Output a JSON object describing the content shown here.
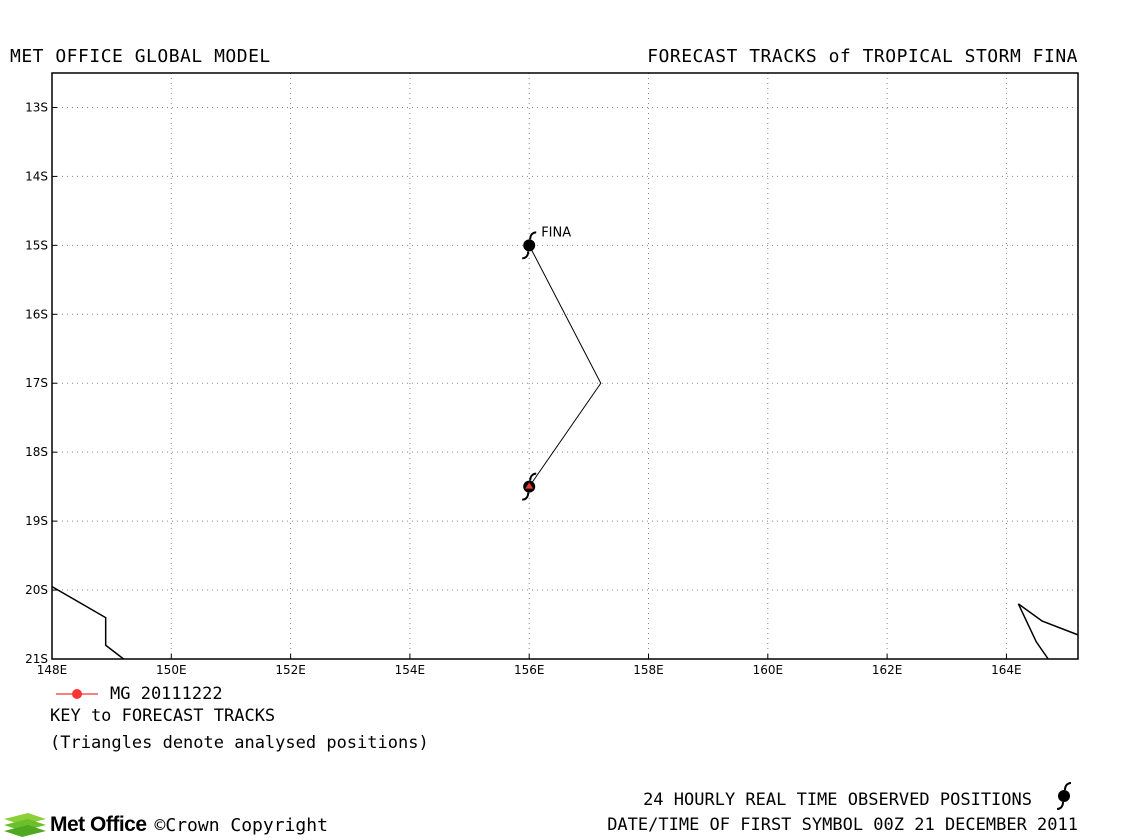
{
  "header": {
    "left": "MET OFFICE GLOBAL MODEL",
    "right": "FORECAST TRACKS of TROPICAL STORM FINA"
  },
  "map": {
    "lon_range": [
      148,
      165.2
    ],
    "lat_range": [
      -21,
      -12.5
    ],
    "lon_ticks": [
      148,
      150,
      152,
      154,
      156,
      158,
      160,
      162,
      164
    ],
    "lon_tick_labels": [
      "148E",
      "150E",
      "152E",
      "154E",
      "156E",
      "158E",
      "160E",
      "162E",
      "164E"
    ],
    "lat_ticks": [
      -13,
      -14,
      -15,
      -16,
      -17,
      -18,
      -19,
      -20,
      -21
    ],
    "lat_tick_labels": [
      "13S",
      "14S",
      "15S",
      "16S",
      "17S",
      "18S",
      "19S",
      "20S",
      "21S"
    ],
    "grid": "dotted",
    "storm_name": "FINA",
    "observed_positions": [
      {
        "lon": 156.0,
        "lat": -18.5
      },
      {
        "lon": 156.0,
        "lat": -15.0
      }
    ],
    "forecast_track": [
      {
        "lon": 156.0,
        "lat": -18.5
      },
      {
        "lon": 157.2,
        "lat": -17.0
      },
      {
        "lon": 156.0,
        "lat": -15.0
      }
    ],
    "coastlines": [
      [
        [
          148.0,
          -19.95
        ],
        [
          148.4,
          -20.15
        ],
        [
          148.9,
          -20.4
        ],
        [
          148.9,
          -20.8
        ],
        [
          149.2,
          -21.0
        ]
      ],
      [
        [
          164.2,
          -20.2
        ],
        [
          164.6,
          -20.45
        ],
        [
          165.2,
          -20.65
        ]
      ],
      [
        [
          164.2,
          -20.2
        ],
        [
          164.5,
          -20.75
        ],
        [
          164.7,
          -21.0
        ]
      ]
    ],
    "colors": {
      "track": "#000000",
      "forecast_marker": "#ff3333",
      "frame": "#000000"
    }
  },
  "key": {
    "run_label": "MG 20111222",
    "run_color": "#ff3333",
    "title": "KEY to FORECAST TRACKS",
    "note": "(Triangles denote analysed positions)"
  },
  "footer": {
    "observed_note": "24 HOURLY REAL TIME OBSERVED POSITIONS",
    "datetime": "DATE/TIME OF FIRST SYMBOL 00Z 21 DECEMBER 2011",
    "logo_text": "Met Office",
    "copyright": "©Crown Copyright",
    "legend_icon": "storm-symbol-icon"
  }
}
